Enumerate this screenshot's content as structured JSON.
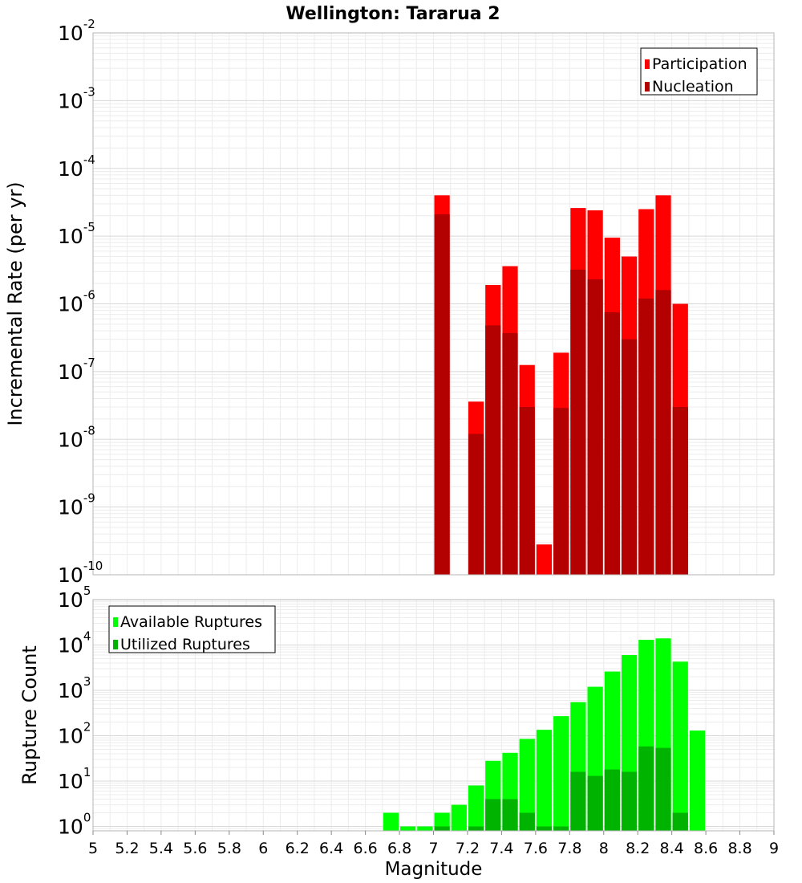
{
  "title": "Wellington: Tararua 2",
  "chart_data": [
    {
      "type": "bar",
      "ylabel": "Incremental Rate (per yr)",
      "xlabel": "",
      "yscale": "log",
      "ylim": [
        1e-10,
        0.01
      ],
      "xlim": [
        5,
        9
      ],
      "bin_width": 0.1,
      "grid": true,
      "legend_position": "top-right",
      "y_ticks": [
        {
          "base": "10",
          "exp": "-10"
        },
        {
          "base": "10",
          "exp": "-9"
        },
        {
          "base": "10",
          "exp": "-8"
        },
        {
          "base": "10",
          "exp": "-7"
        },
        {
          "base": "10",
          "exp": "-6"
        },
        {
          "base": "10",
          "exp": "-5"
        },
        {
          "base": "10",
          "exp": "-4"
        },
        {
          "base": "10",
          "exp": "-3"
        },
        {
          "base": "10",
          "exp": "-2"
        }
      ],
      "series": [
        {
          "name": "Participation",
          "color": "#ff0000",
          "x": [
            7.05,
            7.25,
            7.35,
            7.45,
            7.55,
            7.65,
            7.75,
            7.85,
            7.95,
            8.05,
            8.15,
            8.25,
            8.35,
            8.45
          ],
          "values": [
            4e-05,
            3.6e-08,
            1.9e-06,
            3.6e-06,
            1.25e-07,
            2.8e-10,
            1.9e-07,
            2.6e-05,
            2.4e-05,
            9.5e-06,
            5e-06,
            2.5e-05,
            4e-05,
            1e-06
          ]
        },
        {
          "name": "Nucleation",
          "color": "#b30000",
          "x": [
            7.05,
            7.25,
            7.35,
            7.45,
            7.55,
            7.75,
            7.85,
            7.95,
            8.05,
            8.15,
            8.25,
            8.35,
            8.45
          ],
          "values": [
            2.1e-05,
            1.2e-08,
            4.8e-07,
            3.7e-07,
            3e-08,
            2.9e-08,
            3.2e-06,
            2.3e-06,
            7.5e-07,
            3e-07,
            1.2e-06,
            1.6e-06,
            3e-08
          ]
        }
      ]
    },
    {
      "type": "bar",
      "ylabel": "Rupture Count",
      "xlabel": "Magnitude",
      "yscale": "log",
      "ylim": [
        0.8,
        100000
      ],
      "xlim": [
        5,
        9
      ],
      "bin_width": 0.1,
      "grid": true,
      "legend_position": "top-left",
      "x_ticks": [
        "5",
        "5.2",
        "5.4",
        "5.6",
        "5.8",
        "6",
        "6.2",
        "6.4",
        "6.6",
        "6.8",
        "7",
        "7.2",
        "7.4",
        "7.6",
        "7.8",
        "8",
        "8.2",
        "8.4",
        "8.6",
        "8.8",
        "9"
      ],
      "y_ticks": [
        {
          "base": "10",
          "exp": "0"
        },
        {
          "base": "10",
          "exp": "1"
        },
        {
          "base": "10",
          "exp": "2"
        },
        {
          "base": "10",
          "exp": "3"
        },
        {
          "base": "10",
          "exp": "4"
        },
        {
          "base": "10",
          "exp": "5"
        }
      ],
      "series": [
        {
          "name": "Available Ruptures",
          "color": "#00ff00",
          "x": [
            6.75,
            6.85,
            6.95,
            7.05,
            7.15,
            7.25,
            7.35,
            7.45,
            7.55,
            7.65,
            7.75,
            7.85,
            7.95,
            8.05,
            8.15,
            8.25,
            8.35,
            8.45,
            8.55
          ],
          "values": [
            2,
            1,
            1,
            2,
            3,
            8,
            28,
            42,
            85,
            135,
            270,
            550,
            1200,
            2600,
            6000,
            13000,
            14000,
            4300,
            130
          ]
        },
        {
          "name": "Utilized Ruptures",
          "color": "#00b300",
          "x": [
            7.05,
            7.25,
            7.35,
            7.45,
            7.55,
            7.65,
            7.75,
            7.85,
            7.95,
            8.05,
            8.15,
            8.25,
            8.35,
            8.45
          ],
          "values": [
            1,
            1,
            4,
            4,
            2,
            1,
            1,
            16,
            13,
            18,
            16,
            58,
            54,
            2
          ]
        }
      ]
    }
  ]
}
